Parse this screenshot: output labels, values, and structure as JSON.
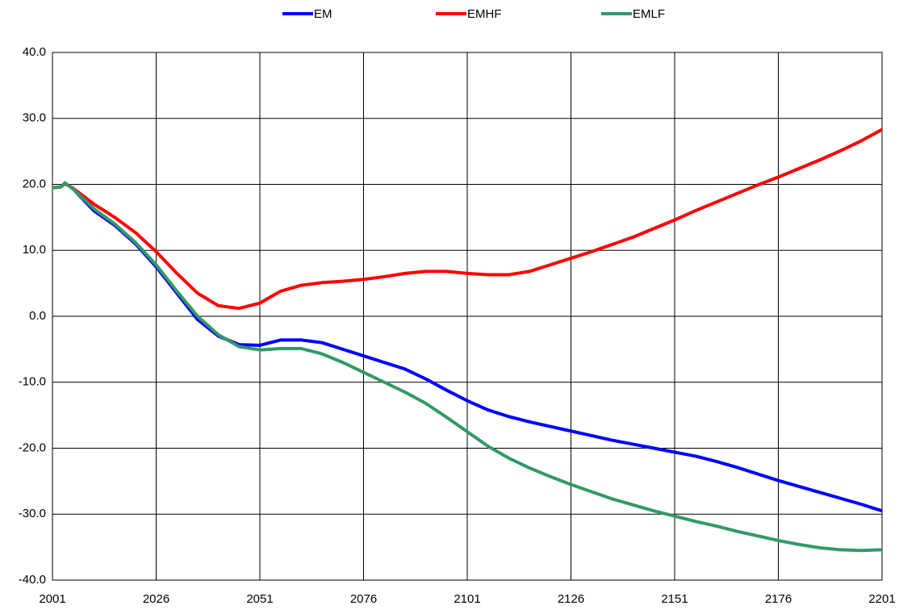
{
  "chart_data": {
    "type": "line",
    "x": [
      2001,
      2003,
      2004,
      2006,
      2011,
      2016,
      2021,
      2026,
      2031,
      2036,
      2041,
      2046,
      2051,
      2056,
      2061,
      2066,
      2071,
      2076,
      2081,
      2086,
      2091,
      2096,
      2101,
      2106,
      2111,
      2116,
      2121,
      2126,
      2131,
      2136,
      2141,
      2146,
      2151,
      2156,
      2161,
      2166,
      2171,
      2176,
      2181,
      2186,
      2191,
      2196,
      2201
    ],
    "series": [
      {
        "name": "EM",
        "color": "#0000ff",
        "values": [
          19.5,
          19.6,
          20.2,
          19.3,
          16,
          13.8,
          11,
          7.5,
          3.5,
          -0.5,
          -3,
          -4.3,
          -4.4,
          -3.6,
          -3.6,
          -4,
          -5,
          -6,
          -7,
          -8,
          -9.5,
          -11.2,
          -12.8,
          -14.2,
          -15.2,
          -16,
          -16.7,
          -17.4,
          -18.1,
          -18.8,
          -19.4,
          -20,
          -20.6,
          -21.2,
          -22,
          -22.9,
          -23.9,
          -24.9,
          -25.8,
          -26.7,
          -27.6,
          -28.5,
          -29.5
        ]
      },
      {
        "name": "EMHF",
        "color": "#ff0000",
        "values": [
          19.5,
          19.6,
          20.1,
          19.4,
          17,
          15,
          12.7,
          9.8,
          6.5,
          3.5,
          1.6,
          1.2,
          2,
          3.8,
          4.7,
          5.1,
          5.3,
          5.6,
          6,
          6.5,
          6.8,
          6.8,
          6.5,
          6.3,
          6.3,
          6.8,
          7.8,
          8.8,
          9.8,
          10.9,
          12,
          13.3,
          14.6,
          16,
          17.3,
          18.6,
          19.9,
          21.1,
          22.4,
          23.7,
          25.1,
          26.6,
          28.3
        ]
      },
      {
        "name": "EMLF",
        "color": "#339966",
        "values": [
          19.5,
          19.6,
          20.2,
          19.3,
          16.3,
          14,
          11.2,
          7.8,
          3.8,
          0,
          -2.8,
          -4.6,
          -5.1,
          -4.9,
          -4.9,
          -5.7,
          -7,
          -8.5,
          -10,
          -11.5,
          -13.2,
          -15.3,
          -17.5,
          -19.7,
          -21.5,
          -23,
          -24.3,
          -25.5,
          -26.6,
          -27.7,
          -28.6,
          -29.5,
          -30.3,
          -31.1,
          -31.8,
          -32.6,
          -33.3,
          -34,
          -34.6,
          -35.1,
          -35.4,
          -35.5,
          -35.4
        ]
      }
    ],
    "xlim": [
      2001,
      2201
    ],
    "xticks": [
      2001,
      2026,
      2051,
      2076,
      2101,
      2126,
      2151,
      2176,
      2201
    ],
    "ylim": [
      -40,
      40
    ],
    "yticks": [
      {
        "value": -40,
        "label": "-40.0"
      },
      {
        "value": -30,
        "label": "-30.0"
      },
      {
        "value": -20,
        "label": "-20.0"
      },
      {
        "value": -10,
        "label": "-10.0"
      },
      {
        "value": 0,
        "label": "0.0"
      },
      {
        "value": 10,
        "label": "10.0"
      },
      {
        "value": 20,
        "label": "20.0"
      },
      {
        "value": 30,
        "label": "30.0"
      },
      {
        "value": 40,
        "label": "40.0"
      }
    ],
    "grid": true,
    "legend": "top"
  }
}
